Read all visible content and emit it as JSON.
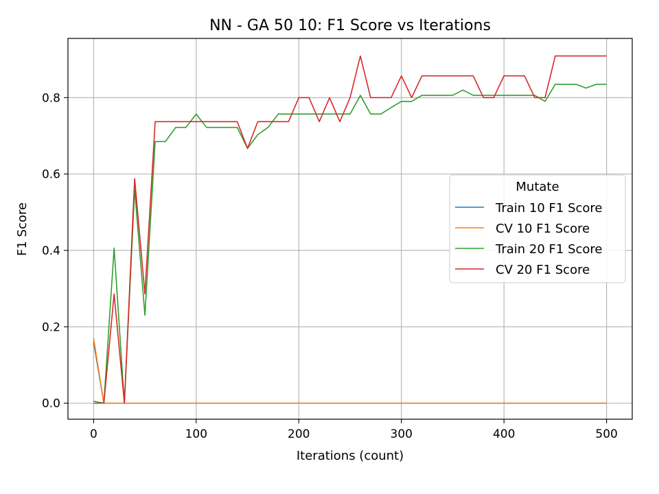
{
  "chart_data": {
    "type": "line",
    "title": "NN - GA 50 10: F1 Score vs Iterations",
    "xlabel": "Iterations (count)",
    "ylabel": "F1 Score",
    "xlim": [
      -25,
      525
    ],
    "ylim": [
      -0.042,
      0.955
    ],
    "xticks": [
      0,
      100,
      200,
      300,
      400,
      500
    ],
    "yticks": [
      0.0,
      0.2,
      0.4,
      0.6,
      0.8
    ],
    "xtick_labels": [
      "0",
      "100",
      "200",
      "300",
      "400",
      "500"
    ],
    "ytick_labels": [
      "0.0",
      "0.2",
      "0.4",
      "0.6",
      "0.8"
    ],
    "grid": true,
    "legend": {
      "title": "Mutate",
      "placement": "center-right"
    },
    "x": [
      0,
      10,
      20,
      30,
      40,
      50,
      60,
      70,
      80,
      90,
      100,
      110,
      120,
      130,
      140,
      150,
      160,
      170,
      180,
      190,
      200,
      210,
      220,
      230,
      240,
      250,
      260,
      270,
      280,
      290,
      300,
      310,
      320,
      330,
      340,
      350,
      360,
      370,
      380,
      390,
      400,
      410,
      420,
      430,
      440,
      450,
      460,
      470,
      480,
      490,
      500
    ],
    "series": [
      {
        "name": "Train 10 F1 Score",
        "color": "#1f77b4",
        "values": [
          0.16,
          0,
          0,
          0,
          0,
          0,
          0,
          0,
          0,
          0,
          0,
          0,
          0,
          0,
          0,
          0,
          0,
          0,
          0,
          0,
          0,
          0,
          0,
          0,
          0,
          0,
          0,
          0,
          0,
          0,
          0,
          0,
          0,
          0,
          0,
          0,
          0,
          0,
          0,
          0,
          0,
          0,
          0,
          0,
          0,
          0,
          0,
          0,
          0,
          0,
          0
        ]
      },
      {
        "name": "CV 10 F1 Score",
        "color": "#ff7f0e",
        "values": [
          0.17,
          0,
          0,
          0,
          0,
          0,
          0,
          0,
          0,
          0,
          0,
          0,
          0,
          0,
          0,
          0,
          0,
          0,
          0,
          0,
          0,
          0,
          0,
          0,
          0,
          0,
          0,
          0,
          0,
          0,
          0,
          0,
          0,
          0,
          0,
          0,
          0,
          0,
          0,
          0,
          0,
          0,
          0,
          0,
          0,
          0,
          0,
          0,
          0,
          0,
          0
        ]
      },
      {
        "name": "Train 20 F1 Score",
        "color": "#2ca02c",
        "values": [
          0.005,
          0,
          0.406,
          0,
          0.56,
          0.23,
          0.685,
          0.685,
          0.722,
          0.722,
          0.757,
          0.722,
          0.722,
          0.722,
          0.722,
          0.667,
          0.703,
          0.722,
          0.757,
          0.757,
          0.757,
          0.757,
          0.757,
          0.757,
          0.757,
          0.757,
          0.806,
          0.757,
          0.757,
          0.774,
          0.79,
          0.79,
          0.806,
          0.806,
          0.806,
          0.806,
          0.82,
          0.806,
          0.806,
          0.806,
          0.806,
          0.806,
          0.806,
          0.806,
          0.79,
          0.835,
          0.835,
          0.835,
          0.825,
          0.835,
          0.835
        ]
      },
      {
        "name": "CV 20 F1 Score",
        "color": "#d62728",
        "values": [
          0,
          0,
          0.286,
          0,
          0.588,
          0.286,
          0.737,
          0.737,
          0.737,
          0.737,
          0.737,
          0.737,
          0.737,
          0.737,
          0.737,
          0.667,
          0.737,
          0.737,
          0.737,
          0.737,
          0.8,
          0.8,
          0.737,
          0.8,
          0.737,
          0.8,
          0.909,
          0.8,
          0.8,
          0.8,
          0.857,
          0.8,
          0.857,
          0.857,
          0.857,
          0.857,
          0.857,
          0.857,
          0.8,
          0.8,
          0.857,
          0.857,
          0.857,
          0.8,
          0.8,
          0.909,
          0.909,
          0.909,
          0.909,
          0.909,
          0.909
        ]
      }
    ]
  }
}
